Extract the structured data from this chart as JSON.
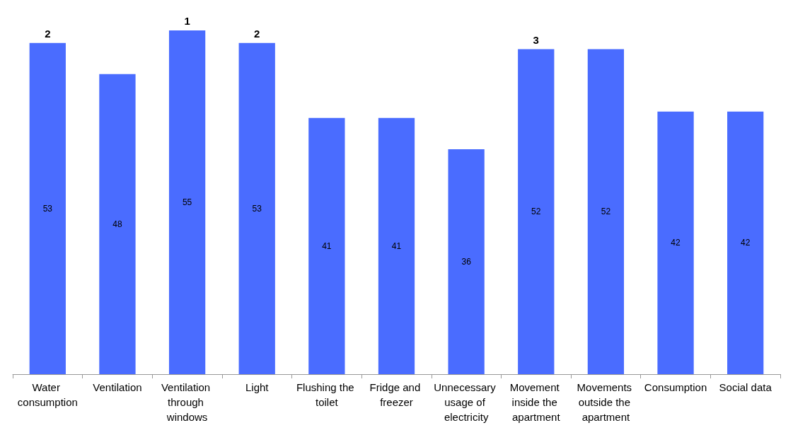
{
  "chart_data": {
    "type": "bar",
    "categories": [
      "Water consumption",
      "Ventilation",
      "Ventilation through windows",
      "Light",
      "Flushing the toilet",
      "Fridge and freezer",
      "Unnecessary usage of electricity",
      "Movement inside the apartment",
      "Movements outside the apartment",
      "Consumption",
      "Social data"
    ],
    "values": [
      53,
      48,
      55,
      53,
      41,
      41,
      36,
      52,
      52,
      42,
      42
    ],
    "color": "#4a6cff",
    "data_labels": true,
    "annotations": [
      {
        "text": "2",
        "x": "Water consumption",
        "y": 53
      },
      {
        "text": "1",
        "x": "Ventilation through windows",
        "y": 55
      },
      {
        "text": "2",
        "x": "Light",
        "y": 53
      },
      {
        "text": "3",
        "x": "Movement inside the apartment",
        "y": 52
      }
    ]
  }
}
